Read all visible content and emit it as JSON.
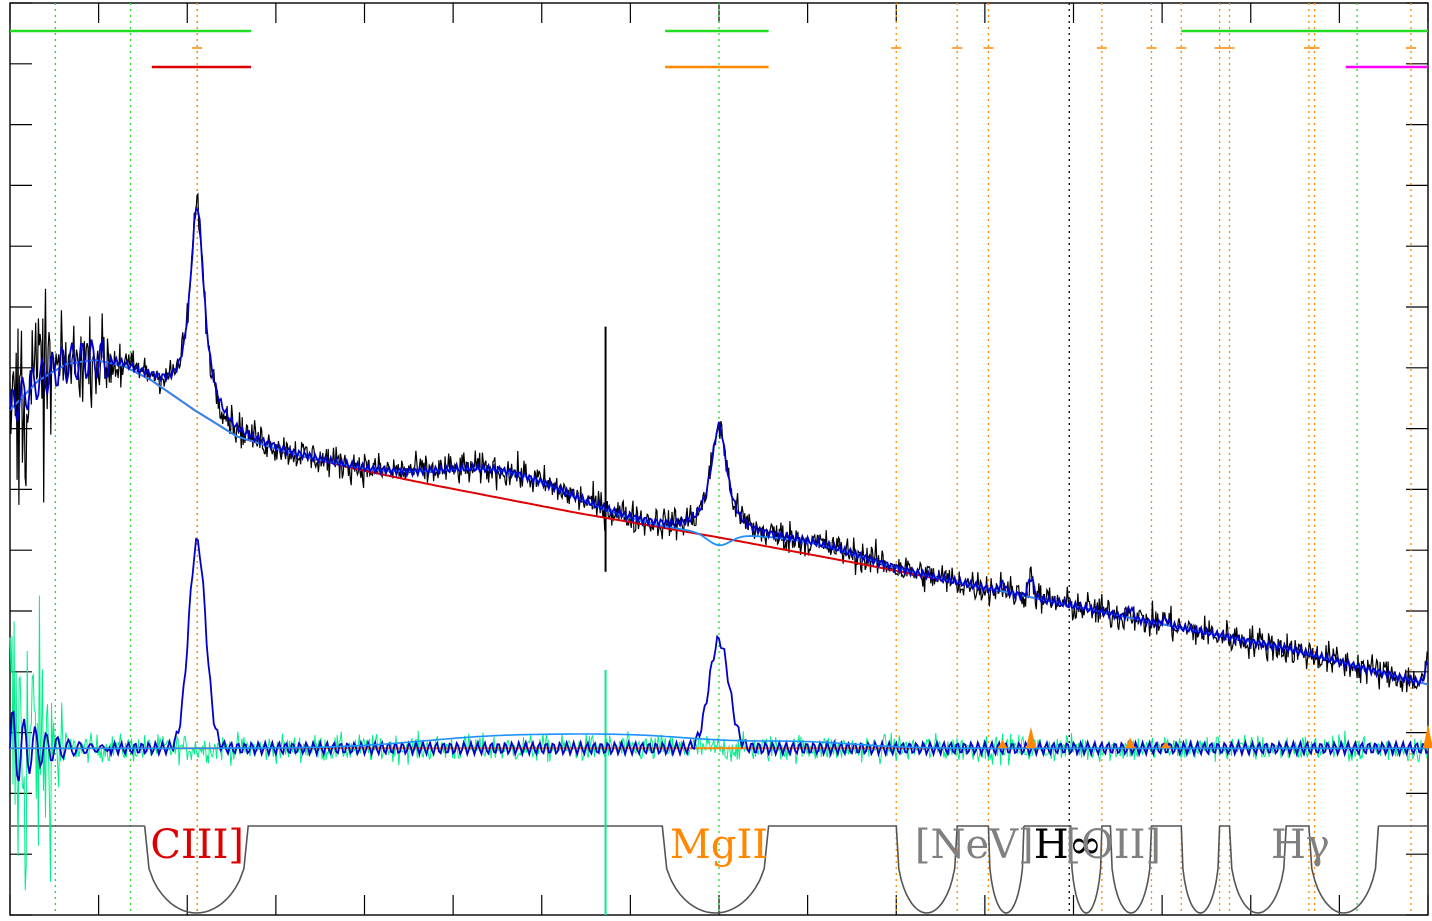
{
  "chart_data": {
    "type": "line",
    "title": "",
    "xlabel": "",
    "ylabel": "",
    "xlim": [
      0,
      1000
    ],
    "ylim": [
      -170,
      760
    ],
    "grid": false,
    "colors": {
      "flux": "#000000",
      "model": "#0000c8",
      "model_light": "#1e90ff",
      "continuum": "#dd0000",
      "residual": "#00ee88",
      "emission_marker": "#ff8800",
      "window_curve": "#555555",
      "green_bar": "#22dd22",
      "orange_bar": "#ff8800",
      "red_bar": "#dd0000",
      "magenta_bar": "#ff00ff"
    },
    "continuum": {
      "x": [
        0,
        20,
        40,
        60,
        80,
        100,
        130,
        160,
        200,
        250,
        300,
        400,
        500,
        600,
        700,
        800,
        900,
        1000
      ],
      "y": [
        345,
        375,
        392,
        396,
        390,
        375,
        345,
        318,
        300,
        283,
        268,
        240,
        215,
        188,
        160,
        130,
        102,
        65
      ]
    },
    "broad_lines": [
      {
        "center": 132,
        "amp": 210,
        "width": 6
      },
      {
        "center": 500,
        "amp": 110,
        "width": 7
      }
    ],
    "narrow_lines": [
      {
        "center": 700,
        "amp": 8,
        "width": 2
      },
      {
        "center": 720,
        "amp": 20,
        "width": 2
      },
      {
        "center": 790,
        "amp": 10,
        "width": 2
      },
      {
        "center": 815,
        "amp": 6,
        "width": 2
      },
      {
        "center": 1000,
        "amp": 22,
        "width": 2
      }
    ],
    "line_labels": [
      {
        "text": "CIII]",
        "x": 132,
        "color": "#dd0000"
      },
      {
        "text": "MgII",
        "x": 500,
        "color": "#ff8800"
      },
      {
        "text": "[NeV]",
        "x": 680,
        "color": "#808080"
      },
      {
        "text": "H∞",
        "x": 746,
        "color": "#000000"
      },
      {
        "text": "[OII]",
        "x": 778,
        "color": "#808080"
      },
      {
        "text": "Hγ",
        "x": 910,
        "color": "#808080"
      }
    ],
    "vertical_markers": {
      "green_dotted": [
        32,
        85,
        132,
        500,
        950
      ],
      "orange_dotted": [
        132,
        625,
        668,
        690,
        770,
        805,
        826,
        853,
        860,
        916,
        920,
        988
      ],
      "black_dotted": [
        747
      ]
    },
    "top_bars": [
      {
        "x0": 0,
        "x1": 170,
        "row": 1,
        "color": "#22dd22"
      },
      {
        "x0": 100,
        "x1": 170,
        "row": 2,
        "color": "#dd0000"
      },
      {
        "x0": 462,
        "x1": 535,
        "row": 1,
        "color": "#22dd22"
      },
      {
        "x0": 462,
        "x1": 535,
        "row": 2,
        "color": "#ff8800"
      },
      {
        "x0": 826,
        "x1": 1000,
        "row": 1,
        "color": "#22dd22"
      },
      {
        "x0": 942,
        "x1": 1000,
        "row": 2,
        "color": "#ff00ff"
      }
    ],
    "windows": [
      {
        "x0": 95,
        "x1": 168
      },
      {
        "x0": 460,
        "x1": 535
      },
      {
        "x0": 625,
        "x1": 668
      },
      {
        "x0": 690,
        "x1": 715
      },
      {
        "x0": 748,
        "x1": 770
      },
      {
        "x0": 776,
        "x1": 805
      },
      {
        "x0": 826,
        "x1": 853
      },
      {
        "x0": 860,
        "x1": 900
      },
      {
        "x0": 916,
        "x1": 965
      }
    ]
  }
}
